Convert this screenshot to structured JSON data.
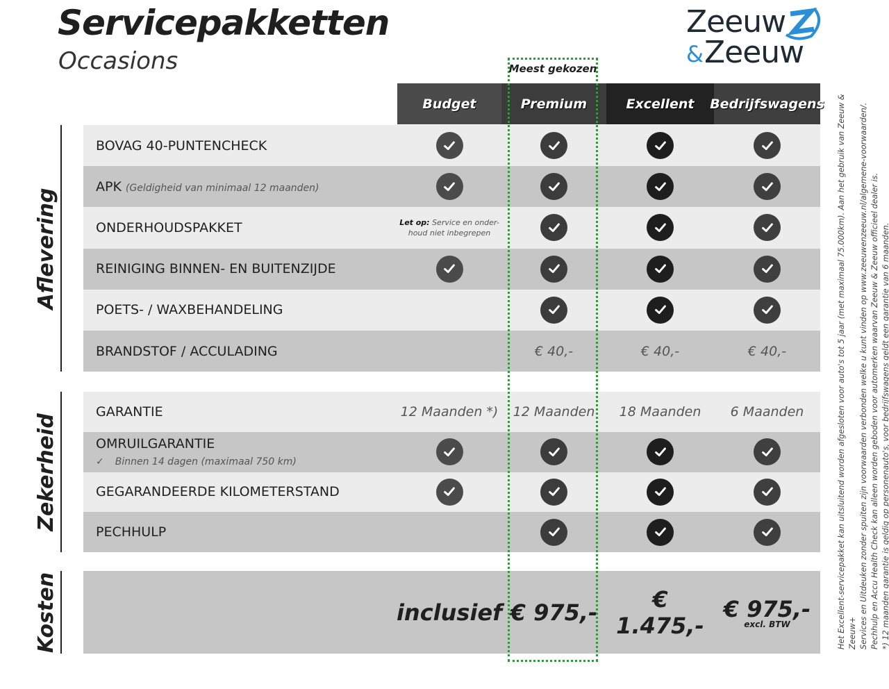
{
  "header": {
    "title": "Servicepakketten",
    "subtitle": "Occasions",
    "logo_line1": "Zeeuw",
    "logo_line2": "Zeeuw",
    "logo_amp": "&"
  },
  "colors": {
    "accent_green": "#2f9a3a",
    "logo_blue": "#2a8fd6",
    "row_light": "#ececec",
    "row_dark": "#c6c6c6"
  },
  "highlight_label": "Meest gekozen",
  "columns": [
    {
      "label": "Budget",
      "bg": "#4b4b4b",
      "check": "#4b4b4b"
    },
    {
      "label": "Premium",
      "bg": "#3c3c3c",
      "check": "#3c3c3c"
    },
    {
      "label": "Excellent",
      "bg": "#222222",
      "check": "#1e1e1e"
    },
    {
      "label": "Bedrijfswagens",
      "bg": "#3f3f3f",
      "check": "#3f3f3f"
    }
  ],
  "sections": [
    {
      "label": "Aflevering",
      "rows": [
        {
          "label": "BOVAG 40-PUNTENCHECK",
          "cells": [
            "check",
            "check",
            "check",
            "check"
          ]
        },
        {
          "label": "APK",
          "sub": "(Geldigheid van minimaal 12 maanden)",
          "cells": [
            "check",
            "check",
            "check",
            "check"
          ]
        },
        {
          "label": "ONDERHOUDSPAKKET",
          "note_bold": "Let op:",
          "note": "Service en onder-houd niet inbegrepen",
          "cells": [
            "note",
            "check",
            "check",
            "check"
          ]
        },
        {
          "label": "REINIGING BINNEN- EN BUITENZIJDE",
          "cells": [
            "check",
            "check",
            "check",
            "check"
          ]
        },
        {
          "label": "POETS- / WAXBEHANDELING",
          "cells": [
            "",
            "check",
            "check",
            "check"
          ]
        },
        {
          "label": "BRANDSTOF / ACCULADING",
          "cells": [
            "",
            "€ 40,-",
            "€ 40,-",
            "€ 40,-"
          ]
        }
      ]
    },
    {
      "label": "Zekerheid",
      "rows": [
        {
          "label": "GARANTIE",
          "cells": [
            "12 Maanden *)",
            "12 Maanden",
            "18 Maanden",
            "6 Maanden"
          ]
        },
        {
          "label": "OMRUILGARANTIE",
          "sub2": "Binnen 14 dagen (maximaal 750 km)",
          "cells": [
            "check",
            "check",
            "check",
            "check"
          ]
        },
        {
          "label": "GEGARANDEERDE KILOMETERSTAND",
          "cells": [
            "check",
            "check",
            "check",
            "check"
          ]
        },
        {
          "label": "PECHHULP",
          "cells": [
            "",
            "check",
            "check",
            "check"
          ]
        }
      ]
    },
    {
      "label": "Kosten",
      "prices": [
        "inclusief",
        "€ 975,-",
        "€ 1.475,-",
        "€ 975,-"
      ],
      "price_note": "excl. BTW"
    }
  ],
  "footnotes": [
    "Het Excellent-servicepakket kan uitsluitend worden afgesloten voor auto's tot 5 jaar (met maximaal 75.000km). Aan het gebruik van Zeeuw & Zeeuw+",
    "Services en Uitdeuken zonder spuiten zijn voorwaarden verbonden welke u kunt vinden op www.zeeuwenzeeuw.nl/algemene-voorwaarden/.",
    "Pechhulp en Accu Health Check kan alleen worden geboden voor automerken waarvan Zeeuw & Zeeuw officieel dealer is.",
    "*) 12 maanden garantie is geldig op personenauto's, voor bedrijfswagens geldt een garantie van 6 maanden."
  ]
}
